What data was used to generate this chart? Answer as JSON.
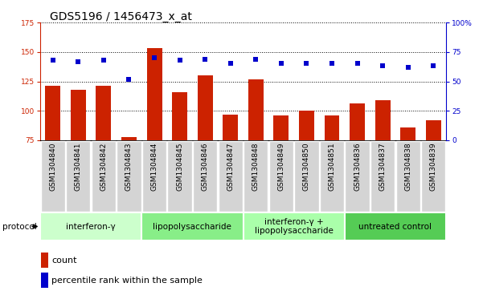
{
  "title": "GDS5196 / 1456473_x_at",
  "samples": [
    "GSM1304840",
    "GSM1304841",
    "GSM1304842",
    "GSM1304843",
    "GSM1304844",
    "GSM1304845",
    "GSM1304846",
    "GSM1304847",
    "GSM1304848",
    "GSM1304849",
    "GSM1304850",
    "GSM1304851",
    "GSM1304836",
    "GSM1304837",
    "GSM1304838",
    "GSM1304839"
  ],
  "bar_values": [
    121,
    118,
    121,
    78,
    153,
    116,
    130,
    97,
    127,
    96,
    100,
    96,
    106,
    109,
    86,
    92
  ],
  "dot_values_pct": [
    68,
    67,
    68,
    52,
    70,
    68,
    69,
    65,
    69,
    65,
    65,
    65,
    65,
    63,
    62,
    63
  ],
  "bar_color": "#cc2200",
  "dot_color": "#0000cc",
  "ylim_left": [
    75,
    175
  ],
  "ylim_right": [
    0,
    100
  ],
  "yticks_left": [
    75,
    100,
    125,
    150,
    175
  ],
  "ytick_labels_left": [
    "75",
    "100",
    "125",
    "150",
    "175"
  ],
  "yticks_right": [
    0,
    25,
    50,
    75,
    100
  ],
  "ytick_labels_right": [
    "0",
    "25",
    "50",
    "75",
    "100%"
  ],
  "groups": [
    {
      "label": "interferon-γ",
      "start": 0,
      "end": 4,
      "color": "#ccffcc"
    },
    {
      "label": "lipopolysaccharide",
      "start": 4,
      "end": 8,
      "color": "#88ee88"
    },
    {
      "label": "interferon-γ +\nlipopolysaccharide",
      "start": 8,
      "end": 12,
      "color": "#aaffaa"
    },
    {
      "label": "untreated control",
      "start": 12,
      "end": 16,
      "color": "#55cc55"
    }
  ],
  "bg_gray": "#d4d4d4",
  "bg_white": "#ffffff",
  "legend_count": "count",
  "legend_percentile": "percentile rank within the sample",
  "protocol_label": "protocol",
  "tick_fontsize": 6.5,
  "sample_fontsize": 6.5,
  "group_fontsize": 7.5,
  "title_fontsize": 10,
  "legend_fontsize": 8
}
